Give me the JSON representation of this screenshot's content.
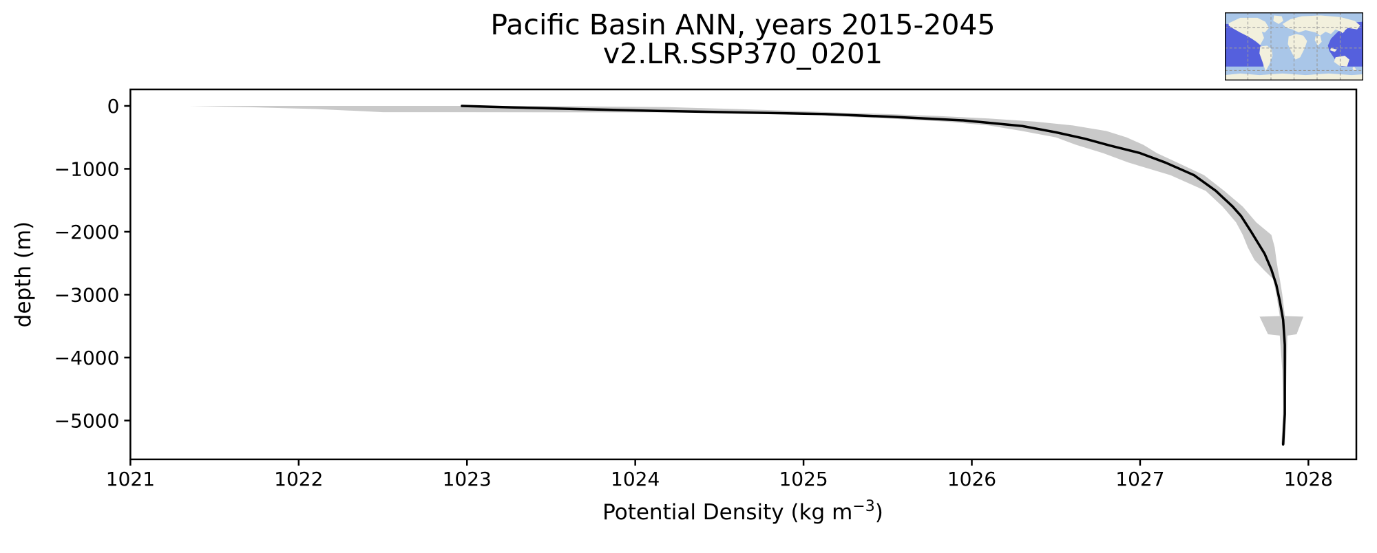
{
  "figure": {
    "title": "Pacific Basin ANN, years 2015-2045",
    "subtitle": "v2.LR.SSP370_0201"
  },
  "axes": {
    "xlabel": {
      "pre": "Potential Density (kg m",
      "sup": "−3",
      "post": ")",
      "full": "Potential Density (kg m⁻³)"
    },
    "ylabel": "depth (m)",
    "xticks": {
      "values": [
        1021,
        1022,
        1023,
        1024,
        1025,
        1026,
        1027,
        1028
      ],
      "labels": [
        "1021",
        "1022",
        "1023",
        "1024",
        "1025",
        "1026",
        "1027",
        "1028"
      ]
    },
    "yticks": {
      "values": [
        0,
        -1000,
        -2000,
        -3000,
        -4000,
        -5000
      ],
      "labels": [
        "0",
        "−1000",
        "−2000",
        "−3000",
        "−4000",
        "−5000"
      ]
    },
    "xlim": [
      1021.0,
      1028.285
    ],
    "ylim": [
      -5618,
      262
    ]
  },
  "chart_data": {
    "type": "line",
    "title": "Pacific Basin ANN, years 2015-2045 — v2.LR.SSP370_0201",
    "xlabel": "Potential Density (kg m⁻³)",
    "ylabel": "depth (m)",
    "xlim": [
      1021.0,
      1028.285
    ],
    "ylim": [
      -5618,
      262
    ],
    "grid": false,
    "legend": "none",
    "series": [
      {
        "name": "mean_profile",
        "color": "#000000",
        "depth_m": [
          0,
          -25,
          -50,
          -80,
          -105,
          -130,
          -175,
          -230,
          -320,
          -420,
          -520,
          -630,
          -750,
          -900,
          -1100,
          -1350,
          -1600,
          -1750,
          -2000,
          -2350,
          -2600,
          -2850,
          -3100,
          -3400,
          -3800,
          -4300,
          -4900,
          -5380
        ],
        "density_kg_m3": [
          1022.97,
          1023.28,
          1023.65,
          1024.13,
          1024.65,
          1025.13,
          1025.54,
          1025.95,
          1026.3,
          1026.5,
          1026.67,
          1026.82,
          1027.0,
          1027.15,
          1027.32,
          1027.45,
          1027.55,
          1027.6,
          1027.66,
          1027.74,
          1027.78,
          1027.81,
          1027.83,
          1027.85,
          1027.86,
          1027.86,
          1027.86,
          1027.85
        ]
      }
    ],
    "band": {
      "name": "spread_band",
      "color": "#c9c9c9",
      "depth_m": [
        0,
        -20,
        -50,
        -80,
        -100,
        -105,
        -130,
        -160,
        -200,
        -250,
        -310,
        -400,
        -500,
        -620,
        -750,
        -900,
        -1100,
        -1350,
        -1600,
        -1850,
        -2050,
        -2250,
        -2450,
        -2620,
        -2750,
        -3000,
        -3340,
        -3350,
        -3630,
        -3650,
        -4200,
        -4800,
        -5380
      ],
      "density_min": [
        1021.35,
        1021.7,
        1022.1,
        1022.35,
        1022.5,
        1024.95,
        1025.05,
        1025.15,
        1025.5,
        1025.85,
        1026.1,
        1026.3,
        1026.5,
        1026.62,
        1026.78,
        1026.93,
        1027.18,
        1027.39,
        1027.49,
        1027.57,
        1027.61,
        1027.64,
        1027.68,
        1027.74,
        1027.79,
        1027.81,
        1027.83,
        1027.71,
        1027.76,
        1027.83,
        1027.845,
        1027.85,
        1027.84
      ],
      "density_max": [
        1023.4,
        1024.2,
        1024.6,
        1024.95,
        1025.15,
        1025.2,
        1025.5,
        1025.8,
        1026.1,
        1026.38,
        1026.6,
        1026.8,
        1026.92,
        1027.02,
        1027.1,
        1027.22,
        1027.38,
        1027.5,
        1027.61,
        1027.69,
        1027.78,
        1027.8,
        1027.81,
        1027.82,
        1027.83,
        1027.845,
        1027.86,
        1027.97,
        1027.93,
        1027.875,
        1027.87,
        1027.865,
        1027.86
      ]
    }
  },
  "inset_map": {
    "name": "pacific-basin-region-map",
    "colors": {
      "ocean": "#a9c6e8",
      "land": "#f2f0dd",
      "highlight_fill": "#5560dd",
      "highlight_edge": "#1d18cb",
      "grid": "#9a9a9a",
      "border": "#000000"
    }
  }
}
